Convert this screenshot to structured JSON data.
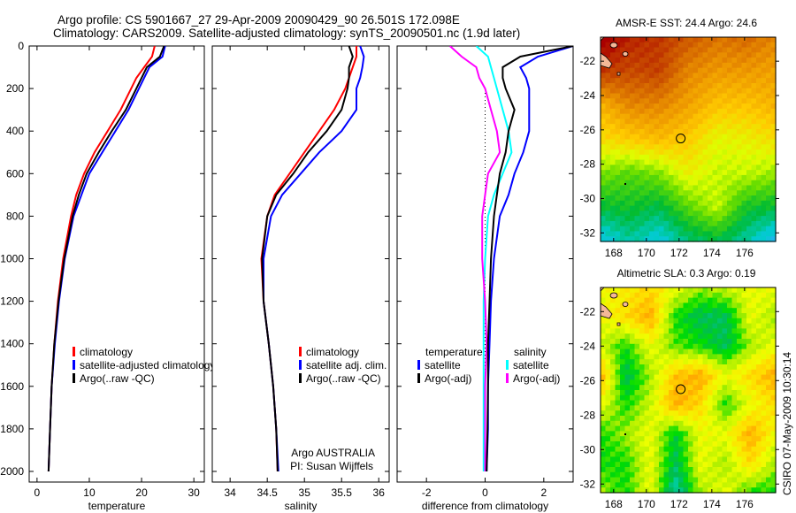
{
  "title": {
    "line1": "Argo profile: CS 5901667_27 29-Apr-2009 20090429_90 26.501S 172.098E",
    "line2": "Climatology: CARS2009. Satellite-adjusted climatology: synTS_20090501.nc (1.9d later)"
  },
  "credit": "CSIRO 07-May-2009 10:30:14",
  "colors": {
    "climatology": "#ff0000",
    "satellite": "#0000ff",
    "argo": "#000000",
    "sal_sat": "#00ffff",
    "sal_argo": "#ff00ff"
  },
  "chart_data": [
    {
      "type": "line",
      "xlabel": "temperature",
      "xlim": [
        -1.5,
        32
      ],
      "ylim": [
        0,
        2050
      ],
      "xticks": [
        0,
        10,
        20,
        30
      ],
      "yticks": [
        0,
        200,
        400,
        600,
        800,
        1000,
        1200,
        1400,
        1600,
        1800,
        2000
      ],
      "depth": [
        0,
        50,
        100,
        150,
        200,
        300,
        400,
        500,
        600,
        700,
        800,
        1000,
        1200,
        1400,
        1600,
        1800,
        2000
      ],
      "series": [
        {
          "name": "climatology",
          "color": "#ff0000",
          "values": [
            22.5,
            22,
            20.5,
            19,
            18,
            16,
            13.5,
            11,
            9,
            7.5,
            6.5,
            5,
            4,
            3.3,
            2.8,
            2.5,
            2.2
          ]
        },
        {
          "name": "satellite-adjusted climatology",
          "color": "#0000ff",
          "values": [
            24.5,
            24,
            21.5,
            20.5,
            19.5,
            17.5,
            15,
            12.5,
            10,
            8.5,
            7,
            5.3,
            4.2,
            3.4,
            2.8,
            2.5,
            2.2
          ]
        },
        {
          "name": "Argo(..raw -QC)",
          "color": "#000000",
          "values": [
            24.3,
            23.5,
            21,
            20,
            19,
            17,
            14.3,
            11.8,
            9.5,
            8,
            6.8,
            5.2,
            4.1,
            3.3,
            2.8,
            2.5,
            2.2
          ]
        }
      ]
    },
    {
      "type": "line",
      "xlabel": "salinity",
      "xlim": [
        33.76,
        36.14
      ],
      "ylim": [
        0,
        2050
      ],
      "xticks": [
        34,
        34.5,
        35,
        35.5,
        36
      ],
      "xticklabels": [
        "34",
        "34.5",
        "35",
        "35.5",
        "36"
      ],
      "depth": [
        0,
        50,
        100,
        150,
        200,
        300,
        400,
        500,
        600,
        700,
        800,
        1000,
        1200,
        1400,
        1600,
        1800,
        2000
      ],
      "series": [
        {
          "name": "climatology",
          "color": "#ff0000",
          "values": [
            35.7,
            35.7,
            35.65,
            35.6,
            35.55,
            35.4,
            35.2,
            35.0,
            34.8,
            34.6,
            34.5,
            34.42,
            34.45,
            34.52,
            34.58,
            34.62,
            34.64
          ]
        },
        {
          "name": "satellite adj. clim.",
          "color": "#0000ff",
          "values": [
            35.75,
            35.8,
            35.78,
            35.75,
            35.7,
            35.7,
            35.5,
            35.2,
            34.95,
            34.7,
            34.55,
            34.45,
            34.45,
            34.52,
            34.58,
            34.62,
            34.65
          ]
        },
        {
          "name": "Argo(..raw -QC)",
          "color": "#000000",
          "values": [
            35.6,
            35.65,
            35.6,
            35.6,
            35.58,
            35.5,
            35.3,
            35.05,
            34.85,
            34.62,
            34.5,
            34.43,
            34.45,
            34.52,
            34.58,
            34.62,
            34.64
          ]
        }
      ],
      "annotation": [
        "Argo AUSTRALIA",
        "PI: Susan Wijffels"
      ]
    },
    {
      "type": "line",
      "xlabel": "difference from climatology",
      "xlim": [
        -3,
        3
      ],
      "ylim": [
        0,
        2050
      ],
      "xticks": [
        -2,
        0,
        2
      ],
      "depth": [
        0,
        50,
        100,
        150,
        200,
        300,
        400,
        500,
        600,
        700,
        800,
        1000,
        1200,
        1400,
        1600,
        1800,
        2000
      ],
      "legend_headers": [
        "temperature",
        "salinity"
      ],
      "series": [
        {
          "name": "satellite",
          "group": "temperature",
          "color": "#0000ff",
          "values": [
            3,
            1.8,
            1.2,
            1.4,
            1.5,
            1.5,
            1.5,
            1.3,
            1.0,
            0.8,
            0.5,
            0.3,
            0.2,
            0.15,
            0.1,
            0.1,
            0.05
          ]
        },
        {
          "name": "Argo(-adj)",
          "group": "temperature",
          "color": "#000000",
          "values": [
            3,
            1.2,
            0.6,
            0.6,
            0.7,
            1.0,
            0.8,
            0.7,
            0.5,
            0.4,
            0.3,
            0.2,
            0.15,
            0.1,
            0.1,
            0.08,
            0.05
          ]
        },
        {
          "name": "satellite",
          "group": "salinity",
          "color": "#00ffff",
          "values": [
            -0.3,
            0.1,
            0.2,
            0.3,
            0.4,
            0.6,
            0.8,
            0.9,
            0.6,
            0.3,
            0.1,
            0,
            -0.05,
            -0.05,
            -0.05,
            -0.05,
            -0.05
          ]
        },
        {
          "name": "Argo(-adj)",
          "group": "salinity",
          "color": "#ff00ff",
          "values": [
            -1.2,
            -0.8,
            -0.3,
            -0.2,
            0,
            0.2,
            0.4,
            0.5,
            0.1,
            0,
            -0.1,
            -0.1,
            0,
            0.05,
            0,
            0,
            0
          ]
        }
      ]
    },
    {
      "type": "heatmap",
      "title": "AMSR-E SST: 24.4 Argo: 24.6",
      "lonlim": [
        167.2,
        177.9
      ],
      "latlim": [
        -32.5,
        -20.6
      ],
      "xticks": [
        168,
        170,
        172,
        174,
        176
      ],
      "yticks": [
        -22,
        -24,
        -26,
        -28,
        -30,
        -32
      ],
      "marker": {
        "lon": 172.098,
        "lat": -26.501
      },
      "grid_rows_north_to_south": [
        [
          26.5,
          26,
          25.8,
          25.5,
          25.2,
          25.3,
          25.0
        ],
        [
          25.8,
          25.6,
          25.7,
          25,
          24.8,
          24.8,
          24.7
        ],
        [
          24.5,
          25,
          25,
          24.7,
          24.3,
          24.3,
          24.5
        ],
        [
          24,
          24.2,
          24.4,
          24.2,
          23.7,
          23.8,
          24.0
        ],
        [
          23.2,
          23,
          23.2,
          23.8,
          23.5,
          23.5,
          23.3
        ],
        [
          22.5,
          22.6,
          22.4,
          23,
          23.5,
          22.6,
          22.5
        ],
        [
          21.5,
          22,
          21.6,
          22.2,
          22.4,
          22,
          21.3
        ]
      ],
      "color_stops": [
        [
          21,
          "#33aaff"
        ],
        [
          21.8,
          "#00cccc"
        ],
        [
          22.5,
          "#00bb33"
        ],
        [
          23.1,
          "#66dd00"
        ],
        [
          23.6,
          "#ddff00"
        ],
        [
          24.2,
          "#ffcc00"
        ],
        [
          24.8,
          "#ee9900"
        ],
        [
          25.5,
          "#cc5500"
        ],
        [
          26.3,
          "#aa0000"
        ]
      ]
    },
    {
      "type": "heatmap",
      "title": "Altimetric SLA: 0.3 Argo: 0.19",
      "lonlim": [
        167.2,
        177.9
      ],
      "latlim": [
        -32.5,
        -20.6
      ],
      "xticks": [
        168,
        170,
        172,
        174,
        176
      ],
      "yticks": [
        -22,
        -24,
        -26,
        -28,
        -30,
        -32
      ],
      "marker": {
        "lon": 172.098,
        "lat": -26.501
      },
      "grid_rows_north_to_south": [
        [
          0.1,
          0.15,
          0.2,
          0.1,
          0,
          0.05,
          0.1,
          0.1
        ],
        [
          0.1,
          0.2,
          0.3,
          -0.1,
          -0.2,
          -0.2,
          0.1,
          0.0
        ],
        [
          0.05,
          -0.1,
          0.1,
          -0.05,
          -0.1,
          -0.2,
          0.0,
          0.1
        ],
        [
          0.3,
          -0.2,
          0.0,
          0.25,
          0.3,
          0.1,
          0.2,
          0.3
        ],
        [
          0.1,
          -0.1,
          0.05,
          0.3,
          0.2,
          -0.1,
          0.1,
          0.2
        ],
        [
          -0.1,
          0.0,
          0.1,
          -0.15,
          0.1,
          0.1,
          0.3,
          0.1
        ],
        [
          -0.1,
          -0.1,
          0.1,
          -0.2,
          0.1,
          0.0,
          0.2,
          0.0
        ],
        [
          0.0,
          -0.1,
          0.1,
          -0.3,
          0.0,
          0.1,
          -0.1,
          -0.1
        ]
      ],
      "color_stops": [
        [
          -0.35,
          "#00dddd"
        ],
        [
          -0.2,
          "#00bb55"
        ],
        [
          -0.1,
          "#00dd00"
        ],
        [
          0,
          "#aaee00"
        ],
        [
          0.1,
          "#eeff00"
        ],
        [
          0.2,
          "#ffdd00"
        ],
        [
          0.3,
          "#ffaa00"
        ]
      ]
    }
  ]
}
